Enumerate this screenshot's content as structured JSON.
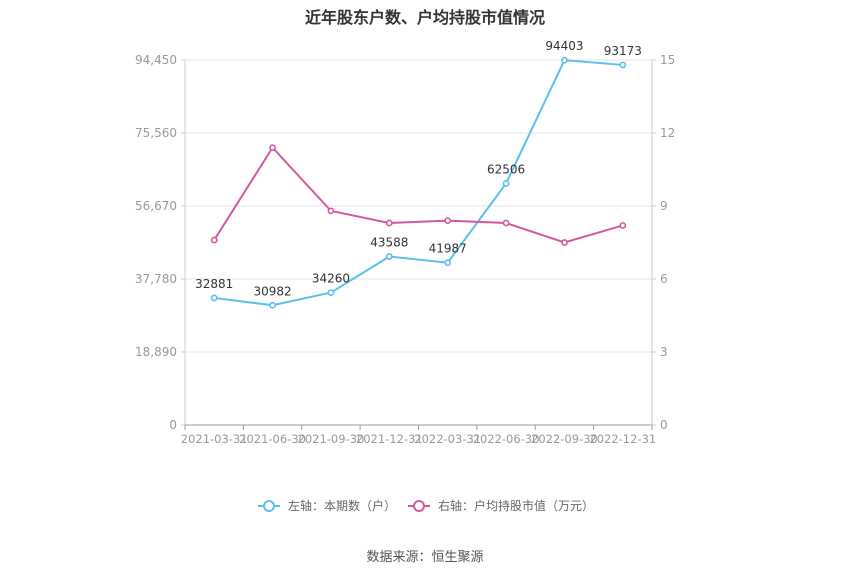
{
  "chart_data": {
    "type": "line",
    "title": "近年股东户数、户均持股市值情况",
    "categories": [
      "2021-03-31",
      "2021-06-30",
      "2021-09-30",
      "2021-12-31",
      "2022-03-31",
      "2022-06-30",
      "2022-09-30",
      "2022-12-31"
    ],
    "series": [
      {
        "name": "左轴：本期数（户）",
        "axis": "left",
        "color": "#5bc0eb",
        "values": [
          32881,
          30982,
          34260,
          43588,
          41987,
          62506,
          94403,
          93173
        ],
        "labels": [
          "32881",
          "30982",
          "34260",
          "43588",
          "41987",
          "62506",
          "94403",
          "93173"
        ]
      },
      {
        "name": "右轴：户均持股市值（万元）",
        "axis": "right",
        "color": "#d4589e",
        "values": [
          7.6,
          11.4,
          8.8,
          8.3,
          8.4,
          8.3,
          7.5,
          8.2
        ]
      }
    ],
    "left_axis": {
      "ylim": [
        0,
        94450
      ],
      "ticks": [
        "0",
        "18,890",
        "37,780",
        "56,670",
        "75,560",
        "94,450"
      ]
    },
    "right_axis": {
      "ylim": [
        0,
        15
      ],
      "ticks": [
        "0",
        "3",
        "6",
        "9",
        "12",
        "15"
      ]
    },
    "grid": true,
    "legend_position": "bottom"
  },
  "source": "数据来源：恒生聚源"
}
